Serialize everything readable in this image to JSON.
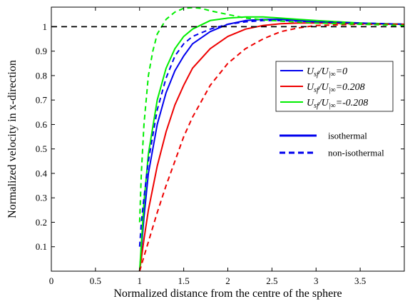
{
  "chart_data": {
    "type": "line",
    "xlabel": "Normalized distance from the centre of the sphere",
    "ylabel": "Normalized velocity in x-direction",
    "xlim": [
      0,
      4
    ],
    "ylim": [
      0,
      1.08
    ],
    "xticks": [
      0,
      0.5,
      1,
      1.5,
      2,
      2.5,
      3,
      3.5
    ],
    "xtick_labels": [
      "0",
      "0.5",
      "1",
      "1.5",
      "2",
      "2.5",
      "3",
      "3.5"
    ],
    "yticks": [
      0.1,
      0.2,
      0.3,
      0.4,
      0.5,
      0.6,
      0.7,
      0.8,
      0.9,
      1.0
    ],
    "ytick_labels": [
      "0.1",
      "0.2",
      "0.3",
      "0.4",
      "0.5",
      "0.6",
      "0.7",
      "0.8",
      "0.9",
      "1"
    ],
    "grid": false,
    "reference_line": {
      "y": 1.0,
      "style": "dashed",
      "color": "#000000"
    },
    "legend_position": "right",
    "legend_velocity": [
      {
        "text_main": "U",
        "text_sub1": "sf",
        "text_mid": "/U",
        "text_sub2": "|∞",
        "text_val": "=0",
        "color": "#0000ee"
      },
      {
        "text_main": "U",
        "text_sub1": "sf",
        "text_mid": "/U",
        "text_sub2": "|∞",
        "text_val": "=0.208",
        "color": "#ee0000"
      },
      {
        "text_main": "U",
        "text_sub1": "sf",
        "text_mid": "/U",
        "text_sub2": "|∞",
        "text_val": "=-0.208",
        "color": "#00ee00"
      }
    ],
    "legend_style": [
      {
        "label": "isothermal",
        "style": "solid",
        "color": "#0000ee"
      },
      {
        "label": "non-isothermal",
        "style": "dashed",
        "color": "#0000ee"
      }
    ],
    "series": [
      {
        "velocity_ratio": "0",
        "regime": "isothermal",
        "color": "#0000ee",
        "style": "solid",
        "x": [
          1.0,
          1.05,
          1.1,
          1.2,
          1.3,
          1.4,
          1.5,
          1.6,
          1.8,
          2.0,
          2.2,
          2.4,
          2.6,
          2.8,
          3.0,
          3.5,
          4.0
        ],
        "y": [
          0.0,
          0.22,
          0.4,
          0.6,
          0.73,
          0.82,
          0.88,
          0.93,
          0.98,
          1.01,
          1.025,
          1.03,
          1.03,
          1.025,
          1.02,
          1.015,
          1.01
        ]
      },
      {
        "velocity_ratio": "0.208",
        "regime": "isothermal",
        "color": "#ee0000",
        "style": "solid",
        "x": [
          1.0,
          1.05,
          1.1,
          1.2,
          1.3,
          1.4,
          1.5,
          1.6,
          1.8,
          2.0,
          2.2,
          2.4,
          2.6,
          2.8,
          3.0,
          3.5,
          4.0
        ],
        "y": [
          0.0,
          0.13,
          0.25,
          0.43,
          0.57,
          0.68,
          0.76,
          0.83,
          0.91,
          0.96,
          0.99,
          1.005,
          1.012,
          1.015,
          1.015,
          1.012,
          1.01
        ]
      },
      {
        "velocity_ratio": "-0.208",
        "regime": "isothermal",
        "color": "#00ee00",
        "style": "solid",
        "x": [
          1.0,
          1.05,
          1.1,
          1.2,
          1.3,
          1.4,
          1.5,
          1.6,
          1.8,
          2.0,
          2.2,
          2.4,
          2.6,
          2.8,
          3.0,
          3.5,
          4.0
        ],
        "y": [
          0.0,
          0.28,
          0.48,
          0.7,
          0.83,
          0.91,
          0.96,
          0.99,
          1.025,
          1.035,
          1.04,
          1.04,
          1.035,
          1.03,
          1.025,
          1.015,
          1.01
        ]
      },
      {
        "velocity_ratio": "0",
        "regime": "non-isothermal",
        "color": "#0000ee",
        "style": "dashed",
        "x": [
          1.0,
          1.02,
          1.05,
          1.1,
          1.2,
          1.3,
          1.4,
          1.5,
          1.6,
          1.8,
          2.0,
          2.2,
          2.4,
          2.6,
          3.0,
          3.5,
          4.0
        ],
        "y": [
          0.1,
          0.2,
          0.3,
          0.45,
          0.66,
          0.79,
          0.88,
          0.93,
          0.96,
          0.99,
          1.01,
          1.02,
          1.025,
          1.025,
          1.02,
          1.015,
          1.01
        ]
      },
      {
        "velocity_ratio": "0.208",
        "regime": "non-isothermal",
        "color": "#ee0000",
        "style": "dashed",
        "x": [
          1.0,
          1.05,
          1.1,
          1.2,
          1.3,
          1.4,
          1.5,
          1.6,
          1.8,
          2.0,
          2.2,
          2.4,
          2.6,
          2.8,
          3.0,
          3.5,
          4.0
        ],
        "y": [
          0.0,
          0.06,
          0.12,
          0.24,
          0.35,
          0.45,
          0.55,
          0.63,
          0.76,
          0.85,
          0.91,
          0.95,
          0.98,
          0.995,
          1.005,
          1.01,
          1.01
        ]
      },
      {
        "velocity_ratio": "-0.208",
        "regime": "non-isothermal",
        "color": "#00ee00",
        "style": "dashed",
        "x": [
          1.0,
          1.02,
          1.05,
          1.1,
          1.15,
          1.2,
          1.3,
          1.4,
          1.5,
          1.6,
          1.7,
          1.8,
          2.0,
          2.2,
          2.5,
          3.0,
          3.5,
          4.0
        ],
        "y": [
          0.2,
          0.4,
          0.6,
          0.8,
          0.9,
          0.97,
          1.03,
          1.06,
          1.075,
          1.078,
          1.075,
          1.065,
          1.05,
          1.035,
          1.025,
          1.015,
          1.01,
          1.005
        ]
      }
    ]
  }
}
